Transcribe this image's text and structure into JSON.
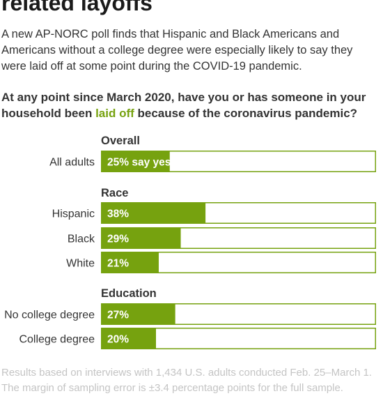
{
  "title": "related layoffs",
  "intro": "A new AP-NORC poll finds that Hispanic and Black Americans and Americans without a college degree were especially likely to say they were laid off at some point during the COVID-19 pandemic.",
  "question": {
    "before": "At any point since March 2020, have you or has someone in your household been ",
    "highlight": "laid off",
    "after": " because of the coronavirus pandemic?"
  },
  "colors": {
    "bar": "#76a20f",
    "highlight": "#76a20f",
    "outline": "#76a20f",
    "footer": "#c4c4c4"
  },
  "chart_data": {
    "type": "bar",
    "orientation": "horizontal",
    "xlim": [
      0,
      100
    ],
    "groups": [
      {
        "title": "Overall",
        "items": [
          {
            "label": "All adults",
            "value": 25,
            "text": "25% say yes"
          }
        ]
      },
      {
        "title": "Race",
        "items": [
          {
            "label": "Hispanic",
            "value": 38,
            "text": "38%"
          },
          {
            "label": "Black",
            "value": 29,
            "text": "29%"
          },
          {
            "label": "White",
            "value": 21,
            "text": "21%"
          }
        ]
      },
      {
        "title": "Education",
        "items": [
          {
            "label": "No college degree",
            "value": 27,
            "text": "27%"
          },
          {
            "label": "College degree",
            "value": 20,
            "text": "20%"
          }
        ]
      }
    ]
  },
  "footer": "Results based on interviews with 1,434 U.S. adults conducted Feb. 25–March 1. The margin of sampling error is ±3.4 percentage points for the full sample."
}
